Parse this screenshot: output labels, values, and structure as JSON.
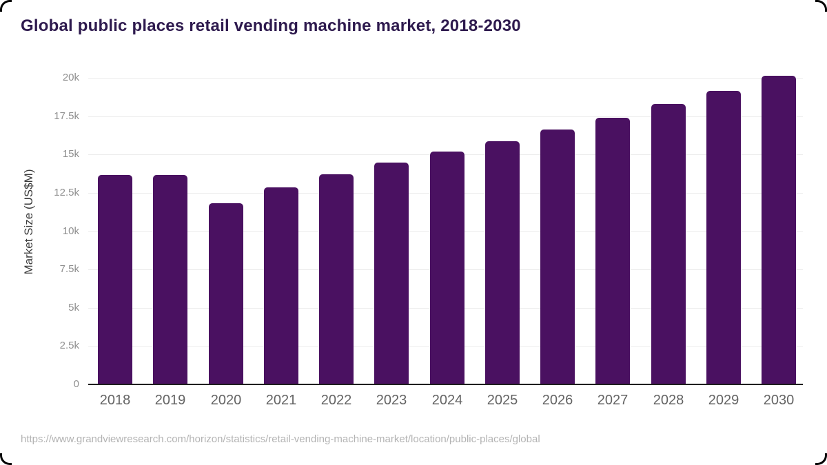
{
  "header": {
    "title": "Global public places retail vending machine market, 2018-2030",
    "title_color": "#2e1a4e"
  },
  "footer": {
    "source_url": "https://www.grandviewresearch.com/horizon/statistics/retail-vending-machine-market/location/public-places/global"
  },
  "chart_data": {
    "type": "bar",
    "title": "Global public places retail vending machine market, 2018-2030",
    "xlabel": "",
    "ylabel": "Market Size (US$M)",
    "categories": [
      "2018",
      "2019",
      "2020",
      "2021",
      "2022",
      "2023",
      "2024",
      "2025",
      "2026",
      "2027",
      "2028",
      "2029",
      "2030"
    ],
    "values": [
      13650,
      13680,
      11820,
      12850,
      13700,
      14480,
      15180,
      15850,
      16620,
      17400,
      18280,
      19150,
      20150
    ],
    "ylim": [
      0,
      20000
    ],
    "grid": true,
    "legend": "none",
    "y_ticks": [
      {
        "value": 0,
        "label": "0"
      },
      {
        "value": 2500,
        "label": "2.5k"
      },
      {
        "value": 5000,
        "label": "5k"
      },
      {
        "value": 7500,
        "label": "7.5k"
      },
      {
        "value": 10000,
        "label": "10k"
      },
      {
        "value": 12500,
        "label": "12.5k"
      },
      {
        "value": 15000,
        "label": "15k"
      },
      {
        "value": 17500,
        "label": "17.5k"
      },
      {
        "value": 20000,
        "label": "20k"
      }
    ],
    "colors": {
      "bar": "#4a1161",
      "gridline": "#ececec",
      "axis_line": "#1f1f1f",
      "y_tick_label": "#8f8f8f",
      "x_tick_label": "#636363"
    }
  }
}
